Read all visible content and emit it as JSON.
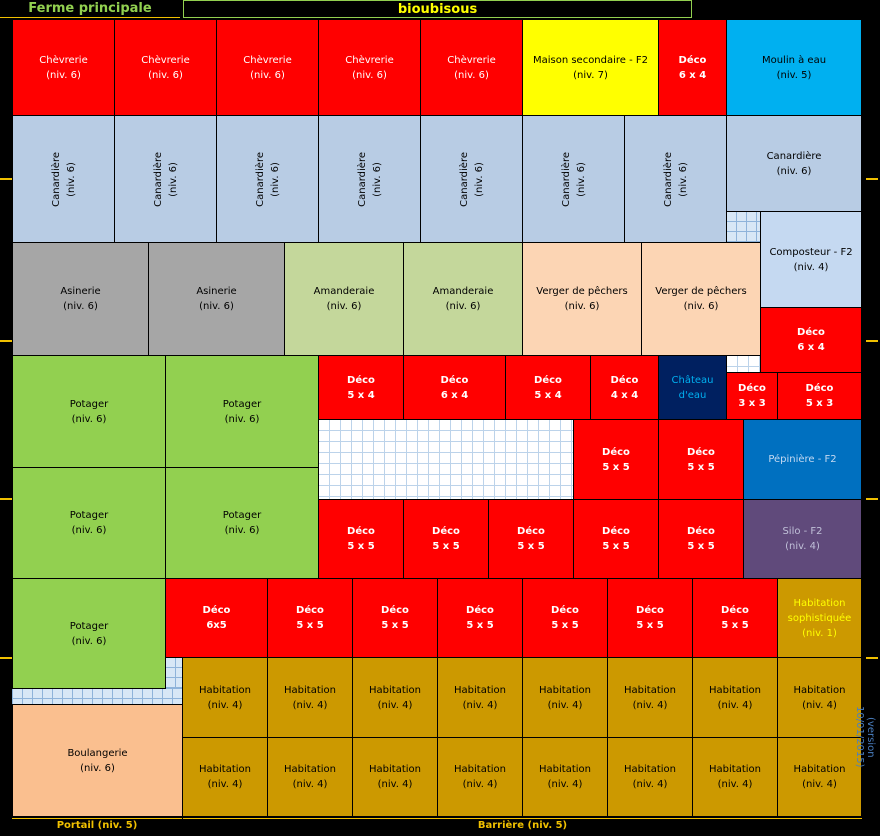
{
  "header": {
    "farm_name": "Ferme principale",
    "player_name": "bioubisous"
  },
  "footer": {
    "gate": "Portail (niv. 5)",
    "fence": "Barrière (niv. 5)"
  },
  "version": "(version 10/01/2015)",
  "colors": {
    "chevrerie": "#ff0000",
    "maison": "#ffff00",
    "deco": "#ff0000",
    "moulin": "#00b0f0",
    "canardiere": "#b8cce4",
    "composteur": "#c5d9f1",
    "asinerie": "#a6a6a6",
    "amanderaie": "#c4d79b",
    "verger": "#fcd5b4",
    "chateau": "#002060",
    "potager": "#92d050",
    "pepiniere": "#0070c0",
    "silo": "#604a7b",
    "habitation": "#cc9900",
    "boulangerie": "#fabf8f"
  },
  "cells": [
    {
      "name": "chevrerie",
      "l1": "Chèvrerie",
      "l2": "(niv. 6)"
    },
    {
      "name": "chevrerie",
      "l1": "Chèvrerie",
      "l2": "(niv. 6)"
    },
    {
      "name": "chevrerie",
      "l1": "Chèvrerie",
      "l2": "(niv. 6)"
    },
    {
      "name": "chevrerie",
      "l1": "Chèvrerie",
      "l2": "(niv. 6)"
    },
    {
      "name": "chevrerie",
      "l1": "Chèvrerie",
      "l2": "(niv. 6)"
    },
    {
      "name": "maison-secondaire",
      "l1": "Maison secondaire - F2",
      "l2": "(niv. 7)"
    },
    {
      "name": "deco",
      "l1": "Déco",
      "l2": "6 x 4"
    },
    {
      "name": "moulin",
      "l1": "Moulin à eau",
      "l2": "(niv. 5)"
    },
    {
      "name": "canardiere",
      "l1": "Canardière",
      "l2": "(niv. 6)"
    },
    {
      "name": "canardiere",
      "l1": "Canardière",
      "l2": "(niv. 6)"
    },
    {
      "name": "canardiere",
      "l1": "Canardière",
      "l2": "(niv. 6)"
    },
    {
      "name": "canardiere",
      "l1": "Canardière",
      "l2": "(niv. 6)"
    },
    {
      "name": "canardiere",
      "l1": "Canardière",
      "l2": "(niv. 6)"
    },
    {
      "name": "canardiere",
      "l1": "Canardière",
      "l2": "(niv. 6)"
    },
    {
      "name": "canardiere",
      "l1": "Canardière",
      "l2": "(niv. 6)"
    },
    {
      "name": "canardiere",
      "l1": "Canardière",
      "l2": "(niv. 6)"
    },
    {
      "name": "composteur",
      "l1": "Composteur - F2",
      "l2": "(niv. 4)"
    },
    {
      "name": "asinerie",
      "l1": "Asinerie",
      "l2": "(niv. 6)"
    },
    {
      "name": "asinerie",
      "l1": "Asinerie",
      "l2": "(niv. 6)"
    },
    {
      "name": "amanderaie",
      "l1": "Amanderaie",
      "l2": "(niv. 6)"
    },
    {
      "name": "amanderaie",
      "l1": "Amanderaie",
      "l2": "(niv. 6)"
    },
    {
      "name": "verger",
      "l1": "Verger de pêchers",
      "l2": "(niv. 6)"
    },
    {
      "name": "verger",
      "l1": "Verger de pêchers",
      "l2": "(niv. 6)"
    },
    {
      "name": "deco",
      "l1": "Déco",
      "l2": "6 x 4"
    },
    {
      "name": "potager",
      "l1": "Potager",
      "l2": "(niv. 6)"
    },
    {
      "name": "potager",
      "l1": "Potager",
      "l2": "(niv. 6)"
    },
    {
      "name": "deco",
      "l1": "Déco",
      "l2": "5 x 4"
    },
    {
      "name": "deco",
      "l1": "Déco",
      "l2": "6 x 4"
    },
    {
      "name": "deco",
      "l1": "Déco",
      "l2": "5 x 4"
    },
    {
      "name": "deco",
      "l1": "Déco",
      "l2": "4 x 4"
    },
    {
      "name": "chateau-eau",
      "l1": "Château",
      "l2": "d'eau"
    },
    {
      "name": "deco",
      "l1": "Déco",
      "l2": "3 x 3"
    },
    {
      "name": "deco",
      "l1": "Déco",
      "l2": "5 x 3"
    },
    {
      "name": "deco",
      "l1": "Déco",
      "l2": "5 x 5"
    },
    {
      "name": "deco",
      "l1": "Déco",
      "l2": "5 x 5"
    },
    {
      "name": "pepiniere",
      "l1": "Pépinière - F2",
      "l2": ""
    },
    {
      "name": "potager",
      "l1": "Potager",
      "l2": "(niv. 6)"
    },
    {
      "name": "potager",
      "l1": "Potager",
      "l2": "(niv. 6)"
    },
    {
      "name": "deco",
      "l1": "Déco",
      "l2": "5 x 5"
    },
    {
      "name": "deco",
      "l1": "Déco",
      "l2": "5 x 5"
    },
    {
      "name": "deco",
      "l1": "Déco",
      "l2": "5 x 5"
    },
    {
      "name": "deco",
      "l1": "Déco",
      "l2": "5 x 5"
    },
    {
      "name": "deco",
      "l1": "Déco",
      "l2": "5 x 5"
    },
    {
      "name": "silo",
      "l1": "Silo - F2",
      "l2": "(niv. 4)"
    },
    {
      "name": "potager",
      "l1": "Potager",
      "l2": "(niv. 6)"
    },
    {
      "name": "deco",
      "l1": "Déco",
      "l2": "6x5"
    },
    {
      "name": "deco",
      "l1": "Déco",
      "l2": "5 x 5"
    },
    {
      "name": "deco",
      "l1": "Déco",
      "l2": "5 x 5"
    },
    {
      "name": "deco",
      "l1": "Déco",
      "l2": "5 x 5"
    },
    {
      "name": "deco",
      "l1": "Déco",
      "l2": "5 x 5"
    },
    {
      "name": "deco",
      "l1": "Déco",
      "l2": "5 x 5"
    },
    {
      "name": "deco",
      "l1": "Déco",
      "l2": "5 x 5"
    },
    {
      "name": "habitation-sophistiquee",
      "l1": "Habitation sophistiquée",
      "l2": "(niv. 1)"
    },
    {
      "name": "habitation",
      "l1": "Habitation",
      "l2": "(niv. 4)"
    },
    {
      "name": "habitation",
      "l1": "Habitation",
      "l2": "(niv. 4)"
    },
    {
      "name": "habitation",
      "l1": "Habitation",
      "l2": "(niv. 4)"
    },
    {
      "name": "habitation",
      "l1": "Habitation",
      "l2": "(niv. 4)"
    },
    {
      "name": "habitation",
      "l1": "Habitation",
      "l2": "(niv. 4)"
    },
    {
      "name": "habitation",
      "l1": "Habitation",
      "l2": "(niv. 4)"
    },
    {
      "name": "habitation",
      "l1": "Habitation",
      "l2": "(niv. 4)"
    },
    {
      "name": "habitation",
      "l1": "Habitation",
      "l2": "(niv. 4)"
    },
    {
      "name": "boulangerie",
      "l1": "Boulangerie",
      "l2": "(niv. 6)"
    },
    {
      "name": "habitation",
      "l1": "Habitation",
      "l2": "(niv. 4)"
    },
    {
      "name": "habitation",
      "l1": "Habitation",
      "l2": "(niv. 4)"
    },
    {
      "name": "habitation",
      "l1": "Habitation",
      "l2": "(niv. 4)"
    },
    {
      "name": "habitation",
      "l1": "Habitation",
      "l2": "(niv. 4)"
    },
    {
      "name": "habitation",
      "l1": "Habitation",
      "l2": "(niv. 4)"
    },
    {
      "name": "habitation",
      "l1": "Habitation",
      "l2": "(niv. 4)"
    },
    {
      "name": "habitation",
      "l1": "Habitation",
      "l2": "(niv. 4)"
    },
    {
      "name": "habitation",
      "l1": "Habitation",
      "l2": "(niv. 4)"
    }
  ]
}
